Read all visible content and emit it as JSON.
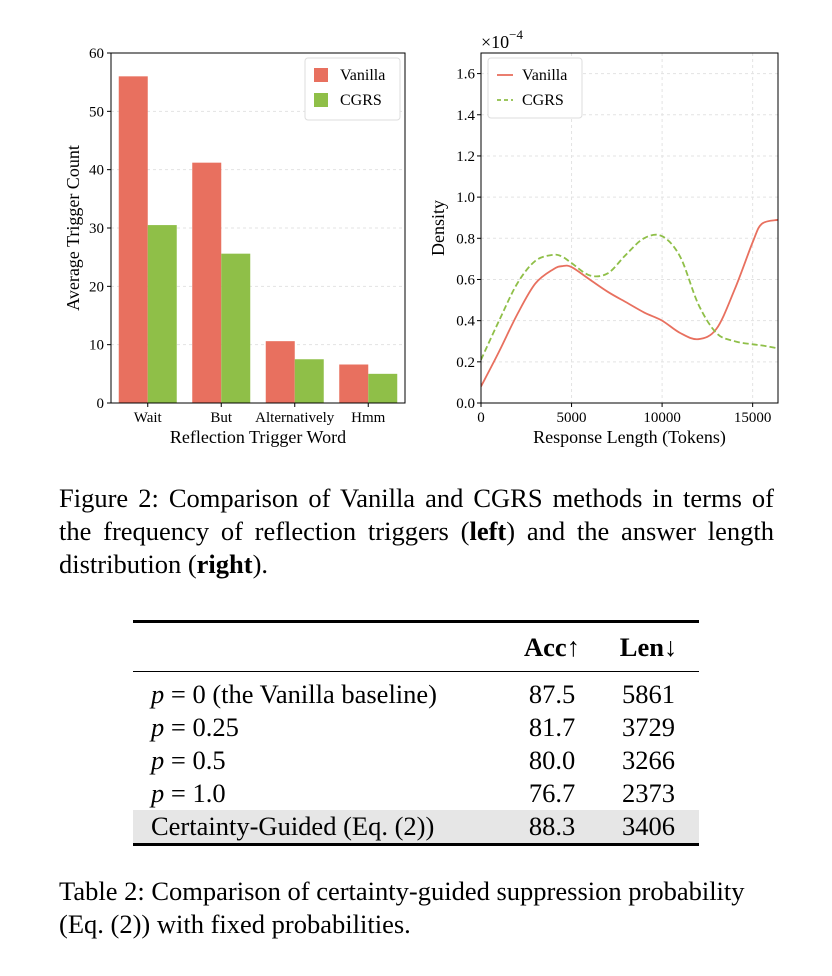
{
  "figure": {
    "caption_prefix": "Figure 2: Comparison of Vanilla and CGRS methods in terms of the frequency of reflection triggers (",
    "caption_left": "left",
    "caption_mid": ") and the answer length distribution (",
    "caption_right": "right",
    "caption_suffix": ")."
  },
  "colors": {
    "vanilla": "#e8705f",
    "cgrs": "#8fbf48",
    "grid": "#e3e3e3"
  },
  "chart_data": [
    {
      "type": "bar",
      "categories": [
        "Wait",
        "But",
        "Alternatively",
        "Hmm"
      ],
      "series": [
        {
          "name": "Vanilla",
          "values": [
            56,
            41.2,
            10.6,
            6.6
          ]
        },
        {
          "name": "CGRS",
          "values": [
            30.5,
            25.6,
            7.5,
            5.0
          ]
        }
      ],
      "xlabel": "Reflection Trigger Word",
      "ylabel": "Average Trigger Count",
      "ylim": [
        0,
        60
      ],
      "yticks": [
        0,
        10,
        20,
        30,
        40,
        50,
        60
      ],
      "legend": "top-right",
      "grid": true
    },
    {
      "type": "line",
      "x": [
        0,
        1000,
        2000,
        3000,
        4000,
        4500,
        5000,
        6000,
        7000,
        8000,
        9000,
        10000,
        11000,
        12000,
        13000,
        14000,
        15000,
        15500,
        16400
      ],
      "series": [
        {
          "name": "Vanilla",
          "style": "solid",
          "values": [
            0.08,
            0.25,
            0.43,
            0.58,
            0.65,
            0.665,
            0.66,
            0.6,
            0.54,
            0.49,
            0.44,
            0.4,
            0.34,
            0.31,
            0.36,
            0.55,
            0.78,
            0.87,
            0.89
          ]
        },
        {
          "name": "CGRS",
          "style": "dashed",
          "values": [
            0.21,
            0.4,
            0.58,
            0.69,
            0.72,
            0.71,
            0.68,
            0.62,
            0.63,
            0.72,
            0.8,
            0.81,
            0.71,
            0.48,
            0.34,
            0.3,
            0.285,
            0.28,
            0.265
          ]
        }
      ],
      "xlabel": "Response Length (Tokens)",
      "ylabel": "Density",
      "scale_label": "×10",
      "scale_exponent": "−4",
      "xlim": [
        0,
        16400
      ],
      "ylim": [
        0,
        1.7
      ],
      "xticks": [
        0,
        5000,
        10000,
        15000
      ],
      "yticks": [
        "0.0",
        "0.2",
        "0.4",
        "0.6",
        "0.8",
        "1.0",
        "1.2",
        "1.4",
        "1.6"
      ],
      "legend": "top-left",
      "grid": true
    }
  ],
  "table": {
    "headers": [
      "",
      "Acc↑",
      "Len↓"
    ],
    "rows": [
      {
        "var": "p",
        "eq": " = ",
        "num": "0",
        "rest": " (the Vanilla baseline)",
        "acc": "87.5",
        "len": "5861"
      },
      {
        "var": "p",
        "eq": " = ",
        "num": "0.25",
        "rest": "",
        "acc": "81.7",
        "len": "3729"
      },
      {
        "var": "p",
        "eq": " = ",
        "num": "0.5",
        "rest": "",
        "acc": "80.0",
        "len": "3266"
      },
      {
        "var": "p",
        "eq": " = ",
        "num": "1.0",
        "rest": "",
        "acc": "76.7",
        "len": "2373"
      },
      {
        "var": "",
        "eq": "",
        "num": "",
        "rest": "Certainty-Guided (Eq. (2))",
        "acc": "88.3",
        "len": "3406"
      }
    ],
    "caption": "Table 2: Comparison of certainty-guided suppression probability (Eq. (2)) with fixed probabilities."
  }
}
